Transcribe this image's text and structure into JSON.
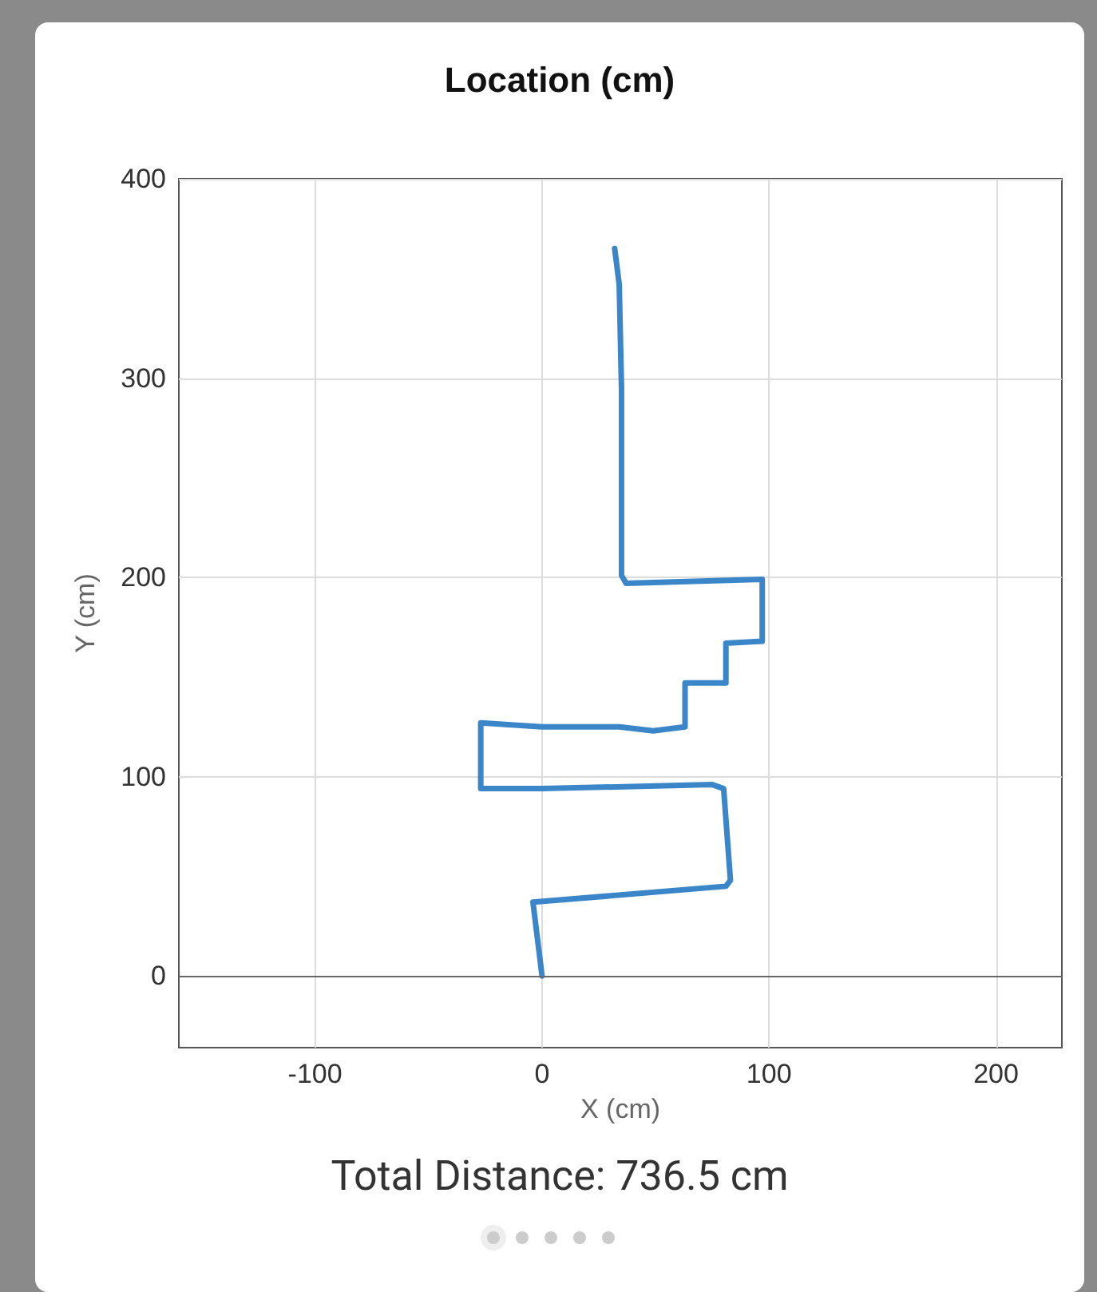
{
  "chart_data": {
    "type": "line",
    "title": "Location (cm)",
    "xlabel": "X (cm)",
    "ylabel": "Y (cm)",
    "annotations": [
      "Total Distance: 736.5 cm"
    ],
    "series": [
      {
        "color": "#3a86c8",
        "x": [
          0,
          -4,
          81,
          83,
          80,
          75,
          0,
          -27,
          -27,
          0,
          34,
          49,
          63,
          63,
          81,
          81,
          97,
          97,
          37,
          35,
          35,
          34,
          32
        ],
        "values": [
          0,
          37,
          45,
          48,
          94,
          96,
          94,
          94,
          127,
          125,
          125,
          123,
          125,
          147,
          147,
          167,
          168,
          199,
          197,
          201,
          295,
          347,
          365
        ]
      }
    ],
    "xlim": [
      -160,
      229
    ],
    "xticks": [
      -100,
      0,
      100,
      200
    ],
    "ylim": [
      -36,
      400
    ],
    "yticks": [
      0,
      100,
      200,
      300,
      400
    ],
    "grid": true,
    "marker": "none",
    "line_style": "solid"
  }
}
